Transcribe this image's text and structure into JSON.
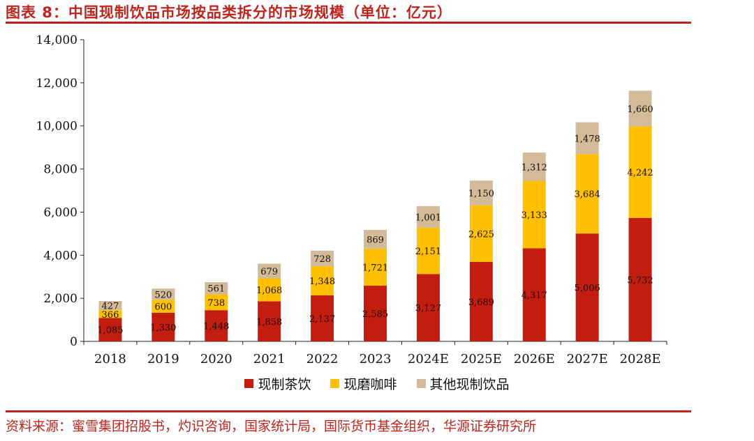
{
  "header": {
    "title": "图表 8：中国现制饮品市场按品类拆分的市场规模（单位：亿元）"
  },
  "footer": {
    "source": "资料来源：蜜雪集团招股书，灼识咨询，国家统计局，国际货币基金组织，华源证券研究所"
  },
  "colors": {
    "accent": "#c0231b",
    "tea": "#c21d0f",
    "coffee": "#fec000",
    "other": "#d3bb99"
  },
  "chart_data": {
    "type": "bar",
    "stacked": true,
    "title": "",
    "xlabel": "",
    "ylabel": "",
    "ylim": [
      0,
      14000
    ],
    "yticks": [
      0,
      2000,
      4000,
      6000,
      8000,
      10000,
      12000,
      14000
    ],
    "ytick_labels": [
      "0",
      "2,000",
      "4,000",
      "6,000",
      "8,000",
      "10,000",
      "12,000",
      "14,000"
    ],
    "grid": false,
    "legend_position": "bottom",
    "categories": [
      "2018",
      "2019",
      "2020",
      "2021",
      "2022",
      "2023",
      "2024E",
      "2025E",
      "2026E",
      "2027E",
      "2028E"
    ],
    "series": [
      {
        "name": "现制茶饮",
        "color": "#c21d0f",
        "values": [
          1085,
          1330,
          1448,
          1858,
          2137,
          2585,
          3127,
          3689,
          4317,
          5006,
          5732
        ],
        "labels": [
          "1,085",
          "1,330",
          "1,448",
          "1,858",
          "2,137",
          "2,585",
          "3,127",
          "3,689",
          "4,317",
          "5,006",
          "5,732"
        ]
      },
      {
        "name": "现磨咖啡",
        "color": "#fec000",
        "values": [
          366,
          600,
          738,
          1068,
          1348,
          1721,
          2151,
          2625,
          3133,
          3684,
          4242
        ],
        "labels": [
          "366",
          "600",
          "738",
          "1,068",
          "1,348",
          "1,721",
          "2,151",
          "2,625",
          "3,133",
          "3,684",
          "4,242"
        ]
      },
      {
        "name": "其他现制饮品",
        "color": "#d3bb99",
        "values": [
          427,
          520,
          561,
          679,
          728,
          869,
          1001,
          1150,
          1312,
          1478,
          1660
        ],
        "labels": [
          "427",
          "520",
          "561",
          "679",
          "728",
          "869",
          "1,001",
          "1,150",
          "1,312",
          "1,478",
          "1,660"
        ]
      }
    ]
  }
}
